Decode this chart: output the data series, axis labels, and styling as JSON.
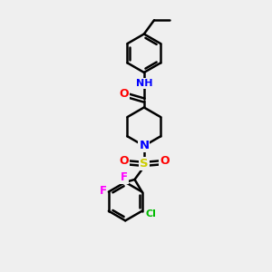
{
  "bg_color": "#efefef",
  "bond_color": "#000000",
  "bond_width": 1.8,
  "atom_colors": {
    "N": "#0000ff",
    "O": "#ff0000",
    "S": "#cccc00",
    "F": "#ff00ff",
    "Cl": "#00bb00",
    "C": "#000000",
    "H": "#555555"
  },
  "font_size": 8.5,
  "figsize": [
    3.0,
    3.0
  ],
  "dpi": 100
}
